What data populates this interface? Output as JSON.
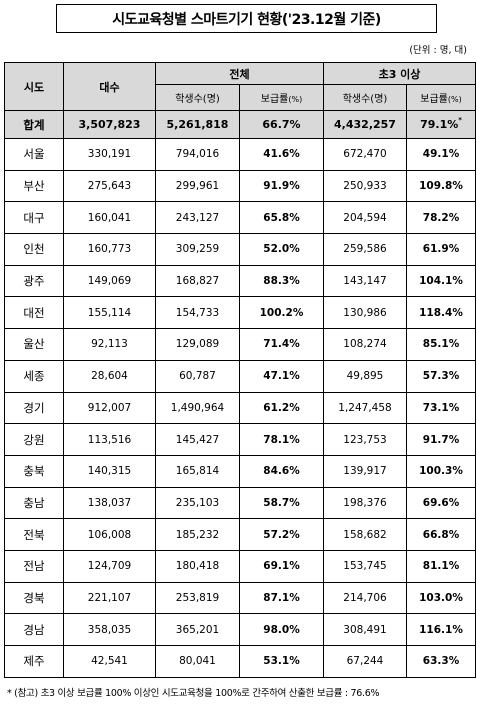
{
  "title": "시도교육청별 스마트기기 현황('23.12월 기준)",
  "unit": "(단위 : 명, 대)",
  "headers": {
    "region": "시도",
    "devices": "대수",
    "overall": "전체",
    "grade3": "초3 이상",
    "students": "학생수(명)",
    "rate_label": "보급률",
    "rate_unit": "(%)"
  },
  "total": {
    "region": "합계",
    "devices": "3,507,823",
    "overall_students": "5,261,818",
    "overall_rate": "66.7%",
    "grade3_students": "4,432,257",
    "grade3_rate": "79.1%",
    "grade3_rate_mark": "*"
  },
  "rows": [
    {
      "region": "서울",
      "devices": "330,191",
      "overall_students": "794,016",
      "overall_rate": "41.6%",
      "grade3_students": "672,470",
      "grade3_rate": "49.1%"
    },
    {
      "region": "부산",
      "devices": "275,643",
      "overall_students": "299,961",
      "overall_rate": "91.9%",
      "grade3_students": "250,933",
      "grade3_rate": "109.8%"
    },
    {
      "region": "대구",
      "devices": "160,041",
      "overall_students": "243,127",
      "overall_rate": "65.8%",
      "grade3_students": "204,594",
      "grade3_rate": "78.2%"
    },
    {
      "region": "인천",
      "devices": "160,773",
      "overall_students": "309,259",
      "overall_rate": "52.0%",
      "grade3_students": "259,586",
      "grade3_rate": "61.9%"
    },
    {
      "region": "광주",
      "devices": "149,069",
      "overall_students": "168,827",
      "overall_rate": "88.3%",
      "grade3_students": "143,147",
      "grade3_rate": "104.1%"
    },
    {
      "region": "대전",
      "devices": "155,114",
      "overall_students": "154,733",
      "overall_rate": "100.2%",
      "grade3_students": "130,986",
      "grade3_rate": "118.4%"
    },
    {
      "region": "울산",
      "devices": "92,113",
      "overall_students": "129,089",
      "overall_rate": "71.4%",
      "grade3_students": "108,274",
      "grade3_rate": "85.1%"
    },
    {
      "region": "세종",
      "devices": "28,604",
      "overall_students": "60,787",
      "overall_rate": "47.1%",
      "grade3_students": "49,895",
      "grade3_rate": "57.3%"
    },
    {
      "region": "경기",
      "devices": "912,007",
      "overall_students": "1,490,964",
      "overall_rate": "61.2%",
      "grade3_students": "1,247,458",
      "grade3_rate": "73.1%"
    },
    {
      "region": "강원",
      "devices": "113,516",
      "overall_students": "145,427",
      "overall_rate": "78.1%",
      "grade3_students": "123,753",
      "grade3_rate": "91.7%"
    },
    {
      "region": "충북",
      "devices": "140,315",
      "overall_students": "165,814",
      "overall_rate": "84.6%",
      "grade3_students": "139,917",
      "grade3_rate": "100.3%"
    },
    {
      "region": "충남",
      "devices": "138,037",
      "overall_students": "235,103",
      "overall_rate": "58.7%",
      "grade3_students": "198,376",
      "grade3_rate": "69.6%"
    },
    {
      "region": "전북",
      "devices": "106,008",
      "overall_students": "185,232",
      "overall_rate": "57.2%",
      "grade3_students": "158,682",
      "grade3_rate": "66.8%"
    },
    {
      "region": "전남",
      "devices": "124,709",
      "overall_students": "180,418",
      "overall_rate": "69.1%",
      "grade3_students": "153,745",
      "grade3_rate": "81.1%"
    },
    {
      "region": "경북",
      "devices": "221,107",
      "overall_students": "253,819",
      "overall_rate": "87.1%",
      "grade3_students": "214,706",
      "grade3_rate": "103.0%"
    },
    {
      "region": "경남",
      "devices": "358,035",
      "overall_students": "365,201",
      "overall_rate": "98.0%",
      "grade3_students": "308,491",
      "grade3_rate": "116.1%"
    },
    {
      "region": "제주",
      "devices": "42,541",
      "overall_students": "80,041",
      "overall_rate": "53.1%",
      "grade3_students": "67,244",
      "grade3_rate": "63.3%"
    }
  ],
  "footnote": "* (참고) 초3 이상 보급률 100% 이상인 시도교육청을 100%로 간주하여 산출한 보급률 : 76.6%"
}
